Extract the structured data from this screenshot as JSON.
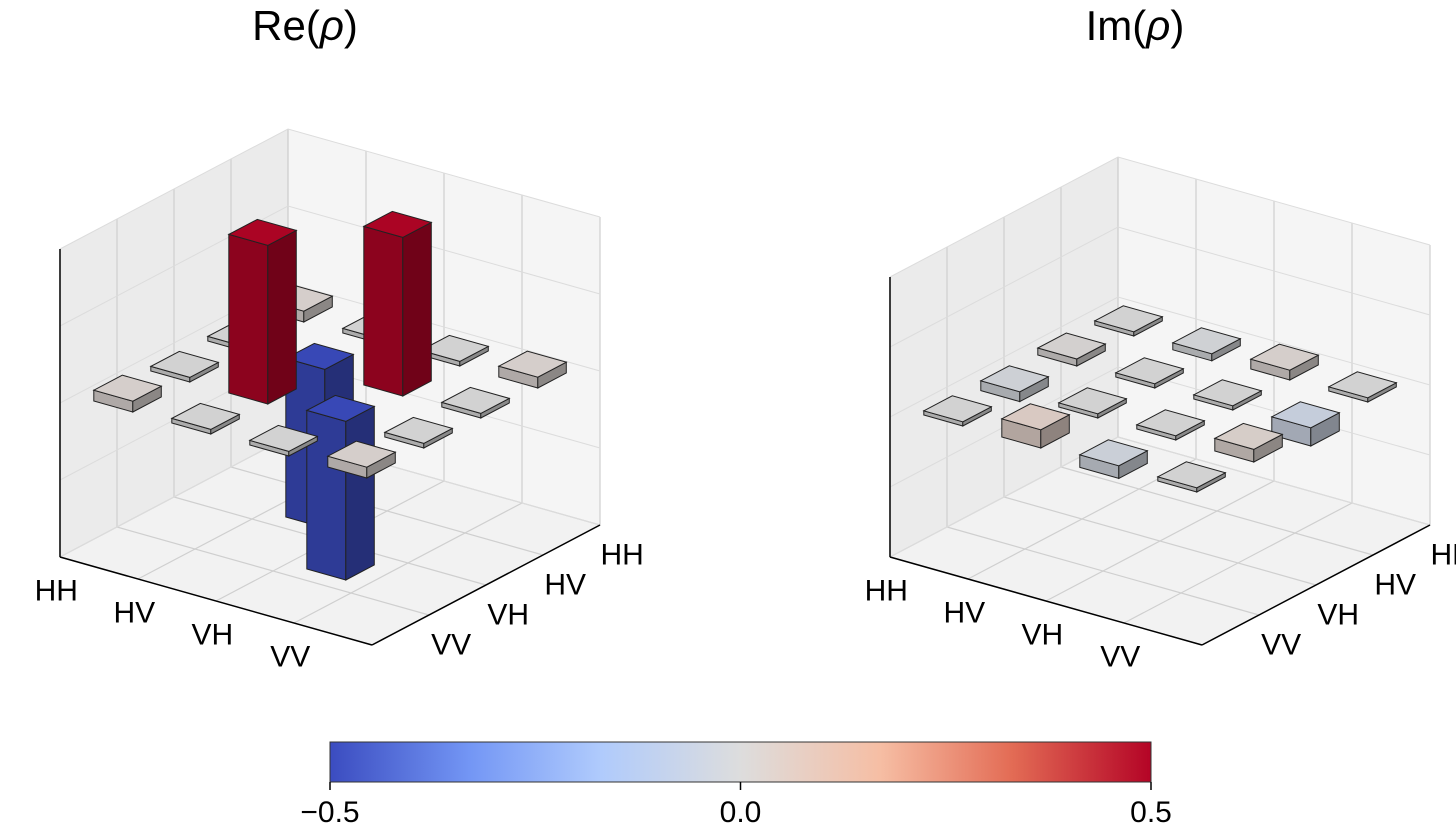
{
  "chart_data": [
    {
      "type": "bar3d",
      "title_base": "Re(",
      "title_symbol": "ρ",
      "title_end": ")",
      "row_labels": [
        "HH",
        "HV",
        "VH",
        "VV"
      ],
      "col_labels": [
        "HH",
        "HV",
        "VH",
        "VV"
      ],
      "zlim": [
        -0.5,
        0.5
      ],
      "values": [
        [
          0.02,
          0.0,
          0.0,
          0.02
        ],
        [
          0.0,
          -0.5,
          0.5,
          0.0
        ],
        [
          0.0,
          0.5,
          -0.5,
          0.0
        ],
        [
          0.02,
          0.0,
          0.0,
          0.02
        ]
      ]
    },
    {
      "type": "bar3d",
      "title_base": "Im(",
      "title_symbol": "ρ",
      "title_end": ")",
      "row_labels": [
        "HH",
        "HV",
        "VH",
        "VV"
      ],
      "col_labels": [
        "HH",
        "HV",
        "VH",
        "VV"
      ],
      "zlim": [
        -0.5,
        0.5
      ],
      "values": [
        [
          0.0,
          0.01,
          -0.02,
          0.0
        ],
        [
          -0.01,
          0.0,
          0.0,
          0.05
        ],
        [
          0.02,
          0.0,
          0.0,
          -0.03
        ],
        [
          0.0,
          -0.05,
          0.03,
          0.0
        ]
      ]
    }
  ],
  "colorbar": {
    "colormap": "coolwarm",
    "min": -0.5,
    "max": 0.5,
    "ticks": [
      "−0.5",
      "0.0",
      "0.5"
    ],
    "tick_values": [
      -0.5,
      0.0,
      0.5
    ],
    "colors": [
      "#3b4cc0",
      "#7396f5",
      "#b0cbfc",
      "#dddddd",
      "#f6bea4",
      "#e36c55",
      "#b40426"
    ]
  }
}
